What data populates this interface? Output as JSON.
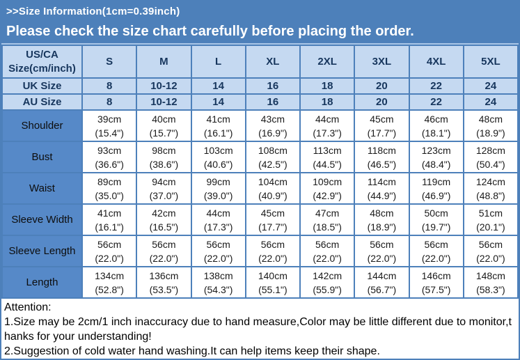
{
  "banner": {
    "line1": ">>Size Information(1cm=0.39inch)",
    "line2": "Please check the size chart carefully before placing the order."
  },
  "table": {
    "corner_header": "US/CA Size(cm/inch)",
    "size_columns": [
      "S",
      "M",
      "L",
      "XL",
      "2XL",
      "3XL",
      "4XL",
      "5XL"
    ],
    "uk_row": {
      "label": "UK Size",
      "values": [
        "8",
        "10-12",
        "14",
        "16",
        "18",
        "20",
        "22",
        "24"
      ]
    },
    "au_row": {
      "label": "AU Size",
      "values": [
        "8",
        "10-12",
        "14",
        "16",
        "18",
        "20",
        "22",
        "24"
      ]
    },
    "measurement_rows": [
      {
        "label": "Shoulder",
        "cells": [
          [
            "39cm",
            "(15.4\")"
          ],
          [
            "40cm",
            "(15.7\")"
          ],
          [
            "41cm",
            "(16.1\")"
          ],
          [
            "43cm",
            "(16.9\")"
          ],
          [
            "44cm",
            "(17.3\")"
          ],
          [
            "45cm",
            "(17.7\")"
          ],
          [
            "46cm",
            "(18.1\")"
          ],
          [
            "48cm",
            "(18.9\")"
          ]
        ]
      },
      {
        "label": "Bust",
        "cells": [
          [
            "93cm",
            "(36.6\")"
          ],
          [
            "98cm",
            "(38.6\")"
          ],
          [
            "103cm",
            "(40.6\")"
          ],
          [
            "108cm",
            "(42.5\")"
          ],
          [
            "113cm",
            "(44.5\")"
          ],
          [
            "118cm",
            "(46.5\")"
          ],
          [
            "123cm",
            "(48.4\")"
          ],
          [
            "128cm",
            "(50.4\")"
          ]
        ]
      },
      {
        "label": "Waist",
        "cells": [
          [
            "89cm",
            "(35.0\")"
          ],
          [
            "94cm",
            "(37.0\")"
          ],
          [
            "99cm",
            "(39.0\")"
          ],
          [
            "104cm",
            "(40.9\")"
          ],
          [
            "109cm",
            "(42.9\")"
          ],
          [
            "114cm",
            "(44.9\")"
          ],
          [
            "119cm",
            "(46.9\")"
          ],
          [
            "124cm",
            "(48.8\")"
          ]
        ]
      },
      {
        "label": "Sleeve Width",
        "cells": [
          [
            "41cm",
            "(16.1\")"
          ],
          [
            "42cm",
            "(16.5\")"
          ],
          [
            "44cm",
            "(17.3\")"
          ],
          [
            "45cm",
            "(17.7\")"
          ],
          [
            "47cm",
            "(18.5\")"
          ],
          [
            "48cm",
            "(18.9\")"
          ],
          [
            "50cm",
            "(19.7\")"
          ],
          [
            "51cm",
            "(20.1\")"
          ]
        ]
      },
      {
        "label": "Sleeve Length",
        "cells": [
          [
            "56cm",
            "(22.0\")"
          ],
          [
            "56cm",
            "(22.0\")"
          ],
          [
            "56cm",
            "(22.0\")"
          ],
          [
            "56cm",
            "(22.0\")"
          ],
          [
            "56cm",
            "(22.0\")"
          ],
          [
            "56cm",
            "(22.0\")"
          ],
          [
            "56cm",
            "(22.0\")"
          ],
          [
            "56cm",
            "(22.0\")"
          ]
        ]
      },
      {
        "label": "Length",
        "cells": [
          [
            "134cm",
            "(52.8\")"
          ],
          [
            "136cm",
            "(53.5\")"
          ],
          [
            "138cm",
            "(54.3\")"
          ],
          [
            "140cm",
            "(55.1\")"
          ],
          [
            "142cm",
            "(55.9\")"
          ],
          [
            "144cm",
            "(56.7\")"
          ],
          [
            "146cm",
            "(57.5\")"
          ],
          [
            "148cm",
            "(58.3\")"
          ]
        ]
      }
    ]
  },
  "attention": {
    "title": "Attention:",
    "lines": [
      "1.Size may be 2cm/1 inch inaccuracy due to hand measure,Color may be little different due to monitor,thanks for your understanding!",
      "2.Suggestion of cold water hand washing.It can help items keep their shape."
    ]
  },
  "colors": {
    "banner_blue": "#4d80ba",
    "label_column_blue": "#5689c8",
    "header_light_blue": "#c5d9f1",
    "border_blue": "#4d80ba",
    "header_text_navy": "#17365d",
    "banner_text": "#ffffff"
  }
}
